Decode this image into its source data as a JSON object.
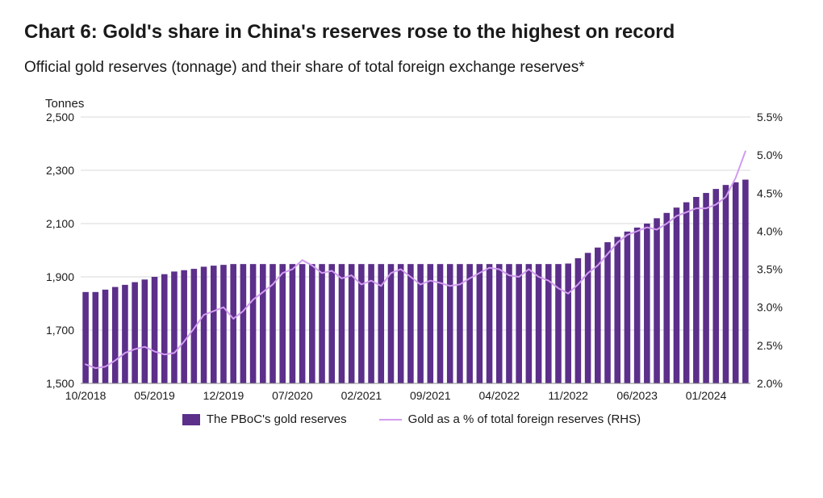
{
  "title": "Chart 6: Gold's share in China's reserves rose to the highest on record",
  "subtitle": "Official gold reserves (tonnage) and their share of total foreign exchange reserves*",
  "chart": {
    "type": "bar+line",
    "background_color": "#ffffff",
    "grid_color": "#d9d9d9",
    "axis_color": "#888888",
    "text_color": "#1a1a1a",
    "bar_color": "#5b2f8a",
    "line_color": "#d29cf0",
    "line_width": 2,
    "bar_width_ratio": 0.62,
    "y_left": {
      "title": "Tonnes",
      "min": 1500,
      "max": 2500,
      "ticks": [
        1500,
        1700,
        1900,
        2100,
        2300,
        2500
      ],
      "labels": [
        "1,500",
        "1,700",
        "1,900",
        "2,100",
        "2,300",
        "2,500"
      ]
    },
    "y_right": {
      "min": 2.0,
      "max": 5.5,
      "ticks": [
        2.0,
        2.5,
        3.0,
        3.5,
        4.0,
        4.5,
        5.0,
        5.5
      ],
      "labels": [
        "2.0%",
        "2.5%",
        "3.0%",
        "3.5%",
        "4.0%",
        "4.5%",
        "5.0%",
        "5.5%"
      ]
    },
    "x_tick_labels": [
      "10/2018",
      "05/2019",
      "12/2019",
      "07/2020",
      "02/2021",
      "09/2021",
      "04/2022",
      "11/2022",
      "06/2023",
      "01/2024"
    ],
    "x_tick_positions": [
      0,
      7,
      14,
      21,
      28,
      35,
      42,
      49,
      56,
      63
    ],
    "legend": {
      "bar_label": "The PBoC's gold reserves",
      "line_label": "Gold as a % of total foreign reserves (RHS)"
    },
    "n_points": 68,
    "bar_values": [
      1843,
      1843,
      1852,
      1862,
      1870,
      1880,
      1890,
      1900,
      1910,
      1920,
      1925,
      1930,
      1938,
      1942,
      1945,
      1948,
      1948,
      1948,
      1948,
      1948,
      1948,
      1948,
      1948,
      1948,
      1948,
      1948,
      1948,
      1948,
      1948,
      1948,
      1948,
      1948,
      1948,
      1948,
      1948,
      1948,
      1948,
      1948,
      1948,
      1948,
      1948,
      1948,
      1948,
      1948,
      1948,
      1948,
      1948,
      1948,
      1948,
      1950,
      1970,
      1990,
      2010,
      2030,
      2050,
      2070,
      2085,
      2100,
      2120,
      2140,
      2160,
      2180,
      2200,
      2215,
      2230,
      2245,
      2255,
      2265
    ],
    "line_values": [
      2.25,
      2.2,
      2.22,
      2.3,
      2.4,
      2.45,
      2.48,
      2.42,
      2.38,
      2.4,
      2.55,
      2.72,
      2.9,
      2.95,
      3.0,
      2.85,
      2.95,
      3.1,
      3.2,
      3.3,
      3.45,
      3.5,
      3.62,
      3.55,
      3.45,
      3.48,
      3.38,
      3.42,
      3.3,
      3.35,
      3.28,
      3.45,
      3.5,
      3.4,
      3.3,
      3.35,
      3.32,
      3.28,
      3.3,
      3.38,
      3.45,
      3.52,
      3.5,
      3.42,
      3.4,
      3.5,
      3.4,
      3.35,
      3.25,
      3.18,
      3.3,
      3.45,
      3.55,
      3.7,
      3.85,
      3.95,
      4.0,
      4.05,
      4.02,
      4.1,
      4.2,
      4.25,
      4.3,
      4.3,
      4.35,
      4.45,
      4.7,
      5.05
    ]
  }
}
